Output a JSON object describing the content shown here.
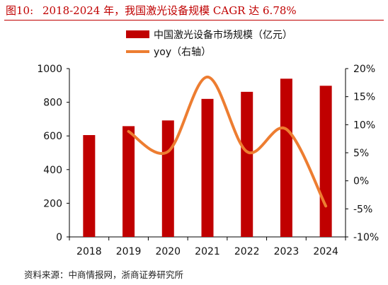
{
  "figure": {
    "number": "图10:",
    "title": "2018-2024 年，我国激光设备规模 CAGR 达 6.78%"
  },
  "source": "资料来源：中商情报网，浙商证券研究所",
  "chart_data": {
    "type": "bar",
    "categories": [
      "2018",
      "2019",
      "2020",
      "2021",
      "2022",
      "2023",
      "2024"
    ],
    "series": [
      {
        "name": "中国激光设备市场规模（亿元）",
        "type": "bar",
        "axis": "left",
        "color": "#c00000",
        "values": [
          605,
          658,
          692,
          820,
          862,
          940,
          898
        ]
      },
      {
        "name": "yoy（右轴）",
        "type": "line",
        "axis": "right",
        "color": "#ed7d31",
        "values": [
          null,
          8.8,
          5.2,
          18.5,
          5.2,
          9.2,
          -4.5
        ]
      }
    ],
    "y_left": {
      "min": 0,
      "max": 1000,
      "ticks": [
        "0",
        "200",
        "400",
        "600",
        "800",
        "1000"
      ]
    },
    "y_right": {
      "min": -10,
      "max": 20,
      "ticks": [
        "-10%",
        "-5%",
        "0%",
        "5%",
        "10%",
        "15%",
        "20%"
      ]
    },
    "legend": "top-center",
    "grid": false
  }
}
